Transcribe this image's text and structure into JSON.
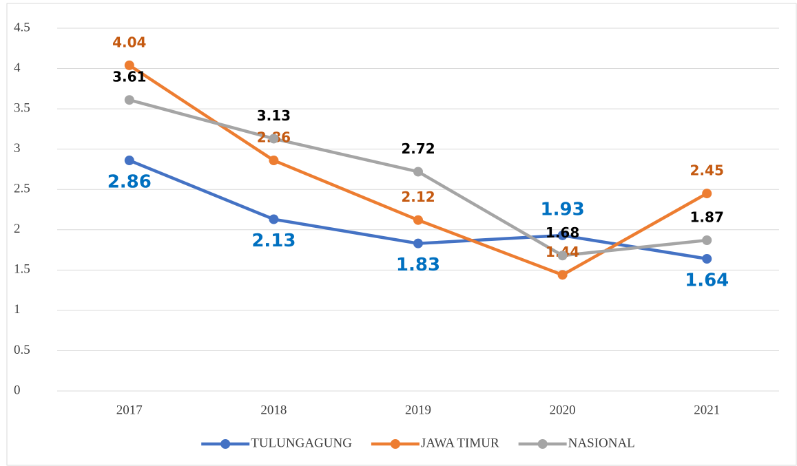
{
  "chart_data": {
    "type": "line",
    "categories": [
      "2017",
      "2018",
      "2019",
      "2020",
      "2021"
    ],
    "series": [
      {
        "name": "TULUNGAGUNG",
        "color": "#4472c4",
        "label_color": "#0070c0",
        "label_size": "large",
        "values": [
          2.86,
          2.13,
          1.83,
          1.93,
          1.64
        ],
        "label_position": [
          "below",
          "below",
          "below",
          "above",
          "below"
        ]
      },
      {
        "name": "JAWA TIMUR",
        "color": "#ed7d31",
        "label_color": "#c55a11",
        "label_size": "small",
        "values": [
          4.04,
          2.86,
          2.12,
          1.44,
          2.45
        ],
        "label_position": [
          "above",
          "above",
          "above",
          "above",
          "above"
        ]
      },
      {
        "name": "NASIONAL",
        "color": "#a5a5a5",
        "label_color": "#000000",
        "label_size": "small",
        "values": [
          3.61,
          3.13,
          2.72,
          1.68,
          1.87
        ],
        "label_position": [
          "above",
          "above",
          "above",
          "above",
          "above"
        ]
      }
    ],
    "ylim": [
      0,
      4.5
    ],
    "yticks": [
      0,
      0.5,
      1,
      1.5,
      2,
      2.5,
      3,
      3.5,
      4,
      4.5
    ],
    "grid": true,
    "legend": "bottom"
  }
}
